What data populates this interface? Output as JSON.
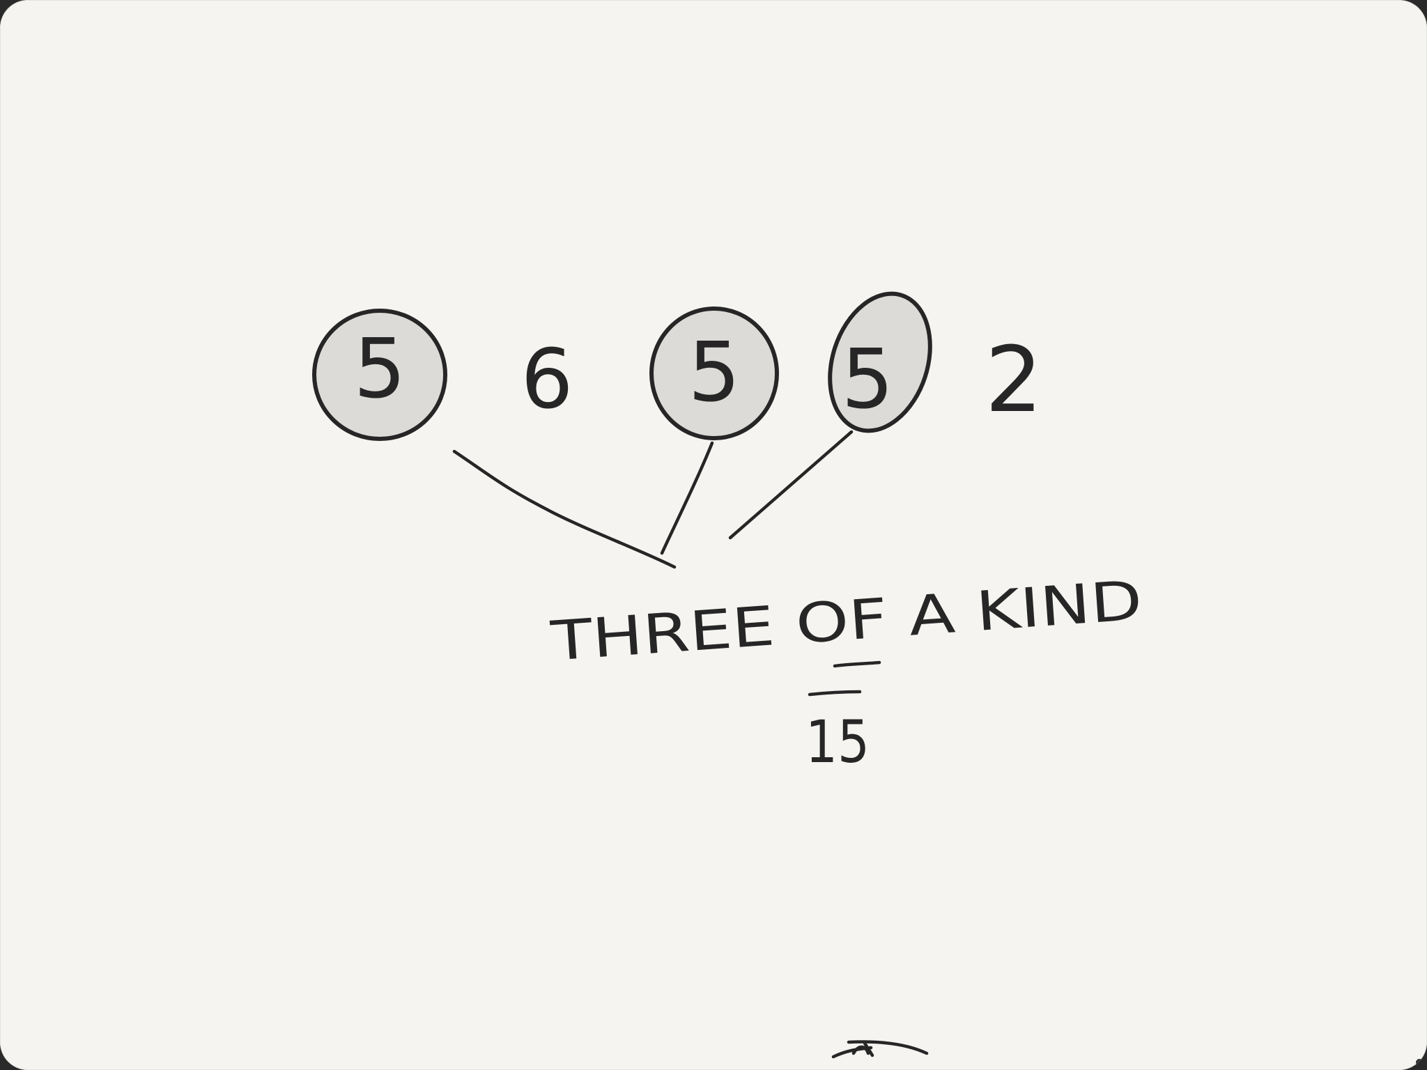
{
  "dice": [
    {
      "value": "5",
      "selected": true
    },
    {
      "value": "6",
      "selected": false
    },
    {
      "value": "5",
      "selected": true
    },
    {
      "value": "5",
      "selected": true
    },
    {
      "value": "2",
      "selected": false
    }
  ],
  "scoring_label": "THREE OF A KIND",
  "score_total": "15",
  "colors": {
    "ink": "#262626",
    "paper": "#f5f4f0",
    "highlight": "#dcdbd7"
  }
}
